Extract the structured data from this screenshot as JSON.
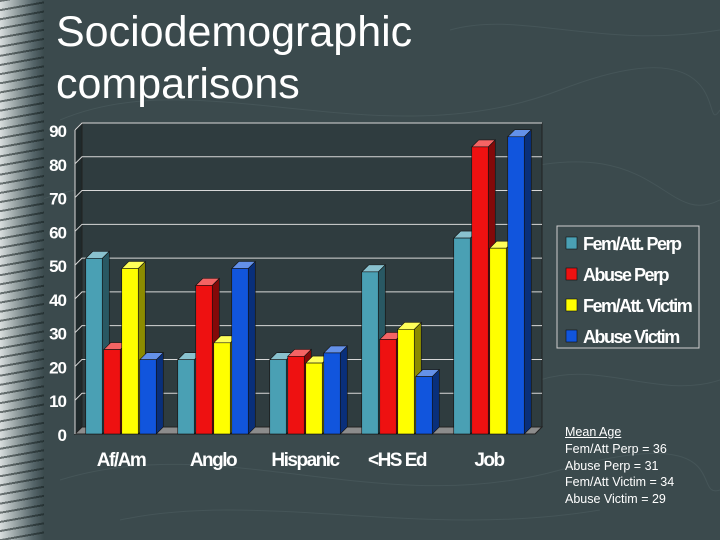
{
  "slide": {
    "title_line1": "Sociodemographic",
    "title_line2": "comparisons"
  },
  "colors": {
    "background": "#3b4a4d",
    "plot_wall": "#2f3c3f"
  },
  "chart_data": {
    "type": "bar",
    "title": "Sociodemographic comparisons",
    "xlabel": "",
    "ylabel": "",
    "ylim": [
      0,
      90
    ],
    "yticks": [
      0,
      10,
      20,
      30,
      40,
      50,
      60,
      70,
      80,
      90
    ],
    "grid": true,
    "legend_position": "right",
    "categories": [
      "Af/Am",
      "Anglo",
      "Hispanic",
      "<HS Ed",
      "Job"
    ],
    "series": [
      {
        "name": "Fem/Att. Perp",
        "color": "#4aa0b4",
        "values": [
          52,
          22,
          22,
          48,
          58
        ]
      },
      {
        "name": "Abuse Perp",
        "color": "#ee1111",
        "values": [
          25,
          44,
          23,
          28,
          85
        ]
      },
      {
        "name": "Fem/Att. Victim",
        "color": "#ffff00",
        "values": [
          49,
          27,
          21,
          31,
          55
        ]
      },
      {
        "name": "Abuse Victim",
        "color": "#1155dd",
        "values": [
          22,
          49,
          24,
          17,
          88
        ]
      }
    ]
  },
  "note": {
    "title": "Mean Age",
    "lines": [
      "Fem/Att Perp = 36",
      "Abuse Perp = 31",
      "Fem/Att Victim = 34",
      "Abuse Victim = 29"
    ]
  }
}
